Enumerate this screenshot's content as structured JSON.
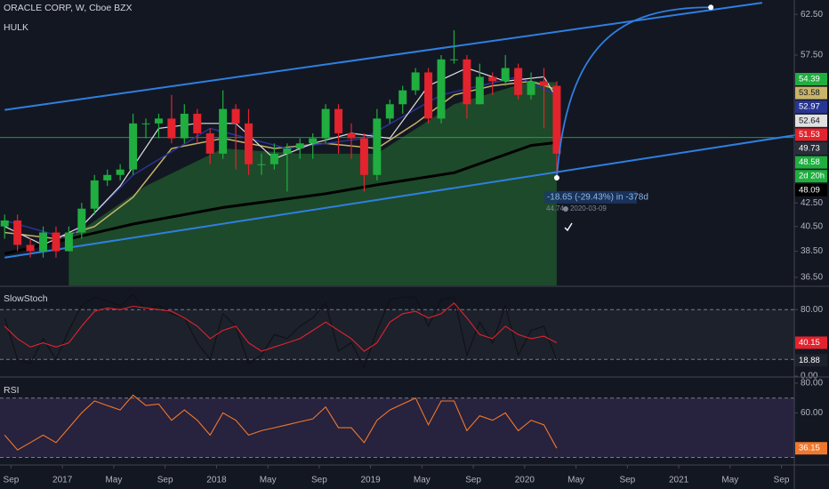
{
  "chart_data": [
    {
      "type": "candlestick",
      "title": "ORACLE CORP, W, Cboe BZX",
      "subtitle": "HULK",
      "up_color": "#1fae3f",
      "down_color": "#e3232d",
      "yscale": "log",
      "grid": false,
      "xlim": [
        "2016-08",
        "2021-10"
      ],
      "ylim": [
        35.9,
        64.36
      ],
      "yticks": [
        {
          "value": 62.5,
          "label": "62.50"
        },
        {
          "value": 57.5,
          "label": "57.50"
        },
        {
          "value": 42.5,
          "label": "42.50"
        },
        {
          "value": 40.5,
          "label": "40.50"
        },
        {
          "value": 38.5,
          "label": "38.50"
        },
        {
          "value": 36.5,
          "label": "36.50"
        }
      ],
      "xticks": [
        {
          "value": "2016-09",
          "label": "Sep"
        },
        {
          "value": "2017-01",
          "label": "2017"
        },
        {
          "value": "2017-05",
          "label": "May"
        },
        {
          "value": "2017-09",
          "label": "Sep"
        },
        {
          "value": "2018-01",
          "label": "2018"
        },
        {
          "value": "2018-05",
          "label": "May"
        },
        {
          "value": "2018-09",
          "label": "Sep"
        },
        {
          "value": "2019-01",
          "label": "2019"
        },
        {
          "value": "2019-05",
          "label": "May"
        },
        {
          "value": "2019-09",
          "label": "Sep"
        },
        {
          "value": "2020-01",
          "label": "2020"
        },
        {
          "value": "2020-05",
          "label": "May"
        },
        {
          "value": "2020-09",
          "label": "Sep"
        },
        {
          "value": "2021-01",
          "label": "2021"
        },
        {
          "value": "2021-05",
          "label": "May"
        },
        {
          "value": "2021-09",
          "label": "Sep"
        }
      ],
      "x": [
        "2016-08",
        "2016-09",
        "2016-10",
        "2016-11",
        "2016-12",
        "2017-01",
        "2017-02",
        "2017-03",
        "2017-04",
        "2017-05",
        "2017-06",
        "2017-07",
        "2017-08",
        "2017-09",
        "2017-10",
        "2017-11",
        "2017-12",
        "2018-01",
        "2018-02",
        "2018-03",
        "2018-04",
        "2018-05",
        "2018-06",
        "2018-07",
        "2018-08",
        "2018-09",
        "2018-10",
        "2018-11",
        "2018-12",
        "2019-01",
        "2019-02",
        "2019-03",
        "2019-04",
        "2019-05",
        "2019-06",
        "2019-07",
        "2019-08",
        "2019-09",
        "2019-10",
        "2019-11",
        "2019-12",
        "2020-01",
        "2020-02",
        "2020-03"
      ],
      "open": [
        40.5,
        41,
        39,
        38.5,
        40,
        38.5,
        40,
        42,
        44.5,
        45,
        45.5,
        50,
        50,
        50.5,
        48.5,
        51,
        49,
        47,
        51.5,
        50,
        46,
        46,
        47,
        47.5,
        48,
        48.5,
        51.5,
        49,
        48.5,
        45,
        50.5,
        52,
        53.5,
        55.5,
        50.5,
        57,
        57,
        52,
        55,
        54.5,
        56,
        53,
        54.5,
        54
      ],
      "high": [
        41.5,
        41.5,
        39.5,
        40.5,
        40.5,
        40.5,
        42.5,
        45,
        45.5,
        46,
        51,
        50.5,
        51,
        53,
        52,
        51.5,
        49.5,
        53.5,
        52,
        51.5,
        47,
        48,
        48,
        48.5,
        49,
        52,
        52,
        50,
        49,
        51.5,
        52.5,
        54,
        56,
        56,
        57.5,
        60.5,
        57.5,
        56.5,
        55.5,
        57.5,
        56.5,
        55.5,
        56,
        54.5
      ],
      "low": [
        39.5,
        38.5,
        38,
        38,
        38,
        38.5,
        39.5,
        41.5,
        44,
        44.5,
        45,
        48.5,
        48.5,
        48,
        48,
        48,
        46,
        46.5,
        45.5,
        45,
        45,
        45.5,
        43.5,
        46.5,
        46.5,
        48,
        47,
        46.5,
        43.5,
        44.5,
        50,
        51,
        53,
        50,
        50,
        56.5,
        50.5,
        52,
        53,
        54,
        52.5,
        52.5,
        49.5,
        44.74
      ],
      "close": [
        41,
        39,
        38.5,
        40,
        38.5,
        40,
        42,
        44.5,
        45,
        45.5,
        50,
        50,
        50.5,
        48.5,
        51,
        49,
        47,
        51.5,
        50,
        46,
        46,
        47,
        47.5,
        48,
        48.5,
        51.5,
        49,
        48.5,
        45,
        50.5,
        52,
        53.5,
        55.5,
        50.5,
        57,
        57,
        52,
        55,
        54.5,
        56,
        53,
        54.5,
        54,
        47
      ],
      "hulk_area": {
        "color": "#1d4a2a",
        "badge_color": "#1fae3f",
        "x": [
          "2017-01",
          "2017-07",
          "2018-01",
          "2018-07",
          "2019-01",
          "2019-07",
          "2020-01",
          "2020-03"
        ],
        "values": [
          39.5,
          44,
          47.5,
          47,
          47,
          52,
          54.5,
          54.39
        ]
      },
      "overlays": [
        {
          "color": "#000000",
          "width": 3,
          "x": [
            "2016-08",
            "2017-06",
            "2018-01",
            "2018-09",
            "2019-01",
            "2019-07",
            "2020-01",
            "2020-03"
          ],
          "values": [
            38.3,
            40.7,
            42.1,
            43.3,
            44.1,
            45.2,
            47.8,
            48.09
          ]
        },
        {
          "color": "#c8b46a",
          "width": 1.5,
          "x": [
            "2016-08",
            "2016-12",
            "2017-03",
            "2017-06",
            "2017-09",
            "2018-01",
            "2018-05",
            "2018-09",
            "2019-01",
            "2019-04",
            "2019-07",
            "2019-10",
            "2020-01",
            "2020-03"
          ],
          "values": [
            40,
            39.5,
            40.5,
            43,
            47.5,
            48.5,
            47.5,
            48,
            47.5,
            50,
            53,
            54,
            54.5,
            53.58
          ]
        },
        {
          "color": "#283593",
          "width": 1.5,
          "x": [
            "2016-08",
            "2017-01",
            "2017-06",
            "2017-12",
            "2018-06",
            "2018-12",
            "2019-06",
            "2019-12",
            "2020-03"
          ],
          "values": [
            41,
            39.5,
            45,
            49.5,
            47.5,
            48.5,
            53,
            55,
            52.97
          ]
        },
        {
          "color": "#e0e0e0",
          "width": 1.2,
          "x": [
            "2016-08",
            "2016-11",
            "2017-02",
            "2017-05",
            "2017-08",
            "2017-11",
            "2018-02",
            "2018-05",
            "2018-08",
            "2018-11",
            "2019-02",
            "2019-05",
            "2019-08",
            "2019-11",
            "2020-02",
            "2020-03"
          ],
          "values": [
            40.5,
            39,
            40.5,
            44,
            49.5,
            50,
            50,
            46.5,
            48,
            49,
            48.5,
            54,
            56,
            54.5,
            55,
            52.64
          ]
        }
      ],
      "price_badges": [
        {
          "value": 51.53,
          "color": "#e3232d"
        },
        {
          "value": 49.73,
          "color": "#2a2e39"
        },
        {
          "value": 48.58,
          "color": "#1fae3f"
        }
      ],
      "countdown": "2d 20h",
      "trendlines": [
        {
          "color": "#2f7fe0",
          "x": [
            "2016-08",
            "2021-07"
          ],
          "values": [
            51.4,
            64.0
          ]
        },
        {
          "color": "#2f7fe0",
          "x": [
            "2016-08",
            "2021-10"
          ],
          "values": [
            38.0,
            48.9
          ]
        }
      ],
      "projection": {
        "color": "#2f7fe0",
        "from": {
          "x": "2020-03",
          "y": 44.74
        },
        "to": {
          "x": "2021-03",
          "y": 63.4
        },
        "label": "-18.65 (-29.43%) in -378d",
        "date": "2020-03-09"
      }
    },
    {
      "type": "line",
      "title": "SlowStoch",
      "ylim": [
        0,
        107
      ],
      "yticks": [
        {
          "value": 80,
          "label": "80.00"
        },
        {
          "value": 0,
          "label": "0.00"
        }
      ],
      "levels": [
        80,
        20
      ],
      "band_color": "#1e222d",
      "x": [
        "2016-08",
        "2016-09",
        "2016-10",
        "2016-11",
        "2016-12",
        "2017-01",
        "2017-02",
        "2017-03",
        "2017-04",
        "2017-05",
        "2017-06",
        "2017-07",
        "2017-08",
        "2017-09",
        "2017-10",
        "2017-11",
        "2017-12",
        "2018-01",
        "2018-02",
        "2018-03",
        "2018-04",
        "2018-05",
        "2018-06",
        "2018-07",
        "2018-08",
        "2018-09",
        "2018-10",
        "2018-11",
        "2018-12",
        "2019-01",
        "2019-02",
        "2019-03",
        "2019-04",
        "2019-05",
        "2019-06",
        "2019-07",
        "2019-08",
        "2019-09",
        "2019-10",
        "2019-11",
        "2019-12",
        "2020-01",
        "2020-02",
        "2020-03"
      ],
      "series": [
        {
          "color": "#111111",
          "badge_color": "#1e222d",
          "values": [
            70,
            20,
            15,
            45,
            20,
            55,
            85,
            95,
            90,
            85,
            98,
            80,
            85,
            75,
            70,
            40,
            20,
            75,
            60,
            15,
            25,
            50,
            45,
            60,
            70,
            88,
            30,
            40,
            10,
            55,
            92,
            95,
            95,
            60,
            92,
            95,
            25,
            65,
            40,
            85,
            25,
            55,
            60,
            18.88
          ]
        },
        {
          "color": "#e3232d",
          "badge_color": "#e3232d",
          "values": [
            60,
            45,
            35,
            40,
            35,
            40,
            60,
            78,
            82,
            80,
            84,
            82,
            80,
            78,
            70,
            60,
            45,
            55,
            60,
            40,
            30,
            35,
            40,
            45,
            55,
            65,
            55,
            45,
            30,
            40,
            65,
            75,
            78,
            70,
            75,
            88,
            70,
            50,
            45,
            60,
            50,
            45,
            48,
            40.15
          ]
        }
      ]
    },
    {
      "type": "line",
      "title": "RSI",
      "ylim": [
        25.5,
        83.6
      ],
      "yticks": [
        {
          "value": 80,
          "label": "80.00"
        },
        {
          "value": 60,
          "label": "60.00"
        }
      ],
      "levels": [
        70,
        30
      ],
      "band_color": "#2a2440",
      "x": [
        "2016-08",
        "2016-09",
        "2016-10",
        "2016-11",
        "2016-12",
        "2017-01",
        "2017-02",
        "2017-03",
        "2017-04",
        "2017-05",
        "2017-06",
        "2017-07",
        "2017-08",
        "2017-09",
        "2017-10",
        "2017-11",
        "2017-12",
        "2018-01",
        "2018-02",
        "2018-03",
        "2018-04",
        "2018-05",
        "2018-06",
        "2018-07",
        "2018-08",
        "2018-09",
        "2018-10",
        "2018-11",
        "2018-12",
        "2019-01",
        "2019-02",
        "2019-03",
        "2019-04",
        "2019-05",
        "2019-06",
        "2019-07",
        "2019-08",
        "2019-09",
        "2019-10",
        "2019-11",
        "2019-12",
        "2020-01",
        "2020-02",
        "2020-03"
      ],
      "series": [
        {
          "color": "#f0782d",
          "badge_color": "#f0782d",
          "values": [
            45,
            35,
            40,
            45,
            40,
            50,
            60,
            68,
            65,
            62,
            72,
            65,
            66,
            55,
            62,
            55,
            45,
            60,
            55,
            45,
            48,
            50,
            52,
            54,
            56,
            64,
            50,
            50,
            40,
            55,
            62,
            66,
            70,
            52,
            68,
            68,
            48,
            58,
            55,
            60,
            48,
            55,
            52,
            36.15
          ]
        }
      ]
    }
  ]
}
